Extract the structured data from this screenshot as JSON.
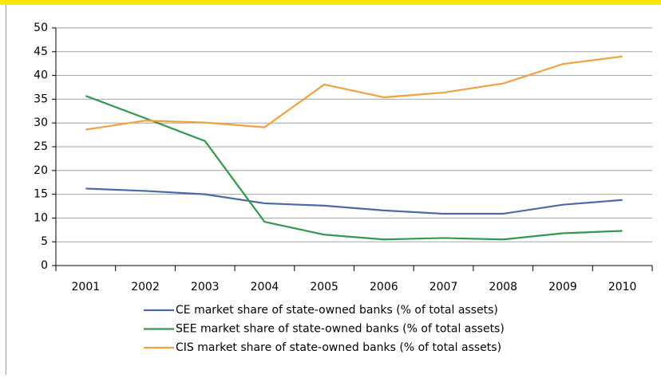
{
  "chart_data": {
    "type": "line",
    "categories": [
      "2001",
      "2002",
      "2003",
      "2004",
      "2005",
      "2006",
      "2007",
      "2008",
      "2009",
      "2010"
    ],
    "series": [
      {
        "name": "CE market share of state-owned banks (% of total assets)",
        "color": "#4a68ad",
        "values": [
          16.2,
          15.7,
          15.0,
          13.1,
          12.6,
          11.6,
          10.9,
          10.9,
          12.8,
          13.8
        ]
      },
      {
        "name": "SEE market share of state-owned banks (% of total assets)",
        "color": "#2e9a4a",
        "values": [
          35.7,
          31.0,
          26.2,
          9.2,
          6.5,
          5.5,
          5.8,
          5.5,
          6.8,
          7.3
        ]
      },
      {
        "name": "CIS market share of state-owned banks (% of total assets)",
        "color": "#f5a040",
        "values": [
          28.6,
          30.5,
          30.1,
          29.1,
          38.1,
          35.4,
          36.4,
          38.3,
          42.4,
          44.0
        ]
      }
    ],
    "ylim": [
      0,
      50
    ],
    "yticks": [
      0,
      5,
      10,
      15,
      20,
      25,
      30,
      35,
      40,
      45,
      50
    ],
    "grid": true,
    "legend": "bottom"
  }
}
